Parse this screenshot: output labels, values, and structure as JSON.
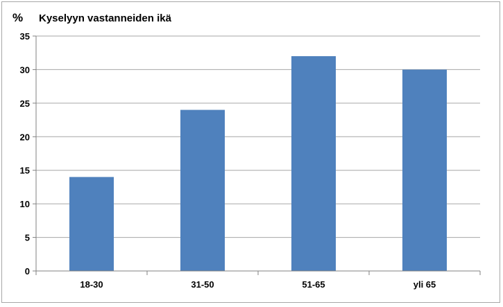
{
  "chart_data": {
    "type": "bar",
    "title": "Kyselyyn vastanneiden ikä",
    "unit_label": "%",
    "categories": [
      "18-30",
      "31-50",
      "51-65",
      "yli 65"
    ],
    "values": [
      14,
      24,
      32,
      30
    ],
    "ylim": [
      0,
      35
    ],
    "yticks": [
      0,
      5,
      10,
      15,
      20,
      25,
      30,
      35
    ],
    "grid": true,
    "legend": "none",
    "bar_color": "#4f81bd",
    "grid_color": "#a6a6a6"
  }
}
